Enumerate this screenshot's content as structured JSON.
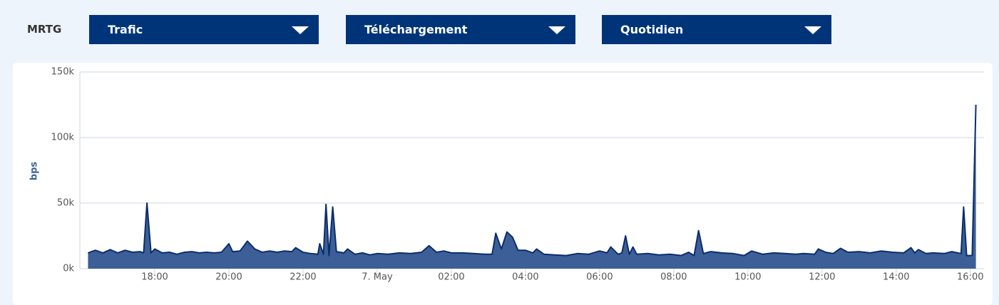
{
  "header": {
    "label": "MRTG",
    "dropdowns": [
      "Trafic",
      "Téléchargement",
      "Quotidien"
    ]
  },
  "chart_data": {
    "type": "area",
    "y_label": "bps",
    "color": "#0c2d6b",
    "fill": "#3c5f98",
    "xlim": [
      15.98,
      40.37
    ],
    "xticks": [
      {
        "value": 18,
        "label": "18:00"
      },
      {
        "value": 20,
        "label": "20:00"
      },
      {
        "value": 22,
        "label": "22:00"
      },
      {
        "value": 24,
        "label": "7. May"
      },
      {
        "value": 26,
        "label": "02:00"
      },
      {
        "value": 28,
        "label": "04:00"
      },
      {
        "value": 30,
        "label": "06:00"
      },
      {
        "value": 32,
        "label": "08:00"
      },
      {
        "value": 34,
        "label": "10:00"
      },
      {
        "value": 36,
        "label": "12:00"
      },
      {
        "value": 38,
        "label": "14:00"
      },
      {
        "value": 40,
        "label": "16:00"
      }
    ],
    "ylim": [
      0,
      150000
    ],
    "yticks": [
      {
        "value": 0,
        "label": "0k"
      },
      {
        "value": 50000,
        "label": "50k"
      },
      {
        "value": 100000,
        "label": "100k"
      },
      {
        "value": 150000,
        "label": "150k"
      }
    ],
    "grid": true,
    "x": [
      16.2,
      16.4,
      16.6,
      16.8,
      17.0,
      17.2,
      17.4,
      17.6,
      17.7,
      17.79,
      17.9,
      18.0,
      18.2,
      18.4,
      18.6,
      18.8,
      19.0,
      19.2,
      19.4,
      19.6,
      19.8,
      20.0,
      20.1,
      20.3,
      20.5,
      20.7,
      20.9,
      21.1,
      21.3,
      21.5,
      21.7,
      21.8,
      22.0,
      22.2,
      22.4,
      22.45,
      22.55,
      22.62,
      22.7,
      22.8,
      22.9,
      23.1,
      23.2,
      23.4,
      23.6,
      23.8,
      24.0,
      24.3,
      24.6,
      24.9,
      25.2,
      25.4,
      25.6,
      25.8,
      26.0,
      26.3,
      26.6,
      26.9,
      27.1,
      27.2,
      27.35,
      27.5,
      27.65,
      27.8,
      28.0,
      28.2,
      28.3,
      28.5,
      28.8,
      29.1,
      29.4,
      29.7,
      30.0,
      30.2,
      30.3,
      30.5,
      30.6,
      30.7,
      30.8,
      30.9,
      31.0,
      31.3,
      31.6,
      31.9,
      32.2,
      32.4,
      32.55,
      32.67,
      32.8,
      33.0,
      33.3,
      33.6,
      33.9,
      34.1,
      34.4,
      34.7,
      35.0,
      35.3,
      35.5,
      35.8,
      35.9,
      36.1,
      36.3,
      36.5,
      36.7,
      37.0,
      37.3,
      37.6,
      37.9,
      38.2,
      38.4,
      38.5,
      38.6,
      38.8,
      39.0,
      39.3,
      39.5,
      39.75,
      39.82,
      39.9,
      40.05,
      40.15
    ],
    "values": [
      12000,
      14000,
      12000,
      14500,
      12000,
      14000,
      12500,
      13000,
      12000,
      50000,
      12000,
      15000,
      12000,
      12500,
      11000,
      12500,
      13000,
      12000,
      12500,
      12000,
      12500,
      19000,
      13000,
      13500,
      21000,
      15000,
      12500,
      13500,
      12500,
      13500,
      13000,
      16000,
      12500,
      11500,
      11000,
      19000,
      11000,
      49000,
      10000,
      47000,
      13000,
      12000,
      15000,
      11000,
      12000,
      10500,
      11500,
      11000,
      12000,
      11500,
      12500,
      17500,
      12500,
      13500,
      12000,
      12000,
      11500,
      11000,
      11000,
      27000,
      15000,
      28000,
      24000,
      14000,
      14000,
      12000,
      15000,
      11000,
      10500,
      10000,
      11500,
      11000,
      13500,
      12000,
      16500,
      11000,
      12000,
      25000,
      11000,
      16500,
      11000,
      11500,
      10500,
      11000,
      10000,
      12500,
      10000,
      29000,
      11500,
      13000,
      12000,
      11500,
      10000,
      13500,
      11000,
      12000,
      11500,
      11000,
      11500,
      11000,
      15000,
      12500,
      11500,
      15500,
      12500,
      13000,
      12000,
      13500,
      12500,
      12000,
      16000,
      12000,
      14500,
      11500,
      12000,
      11500,
      13000,
      11500,
      47000,
      10000,
      10000,
      125000
    ]
  }
}
